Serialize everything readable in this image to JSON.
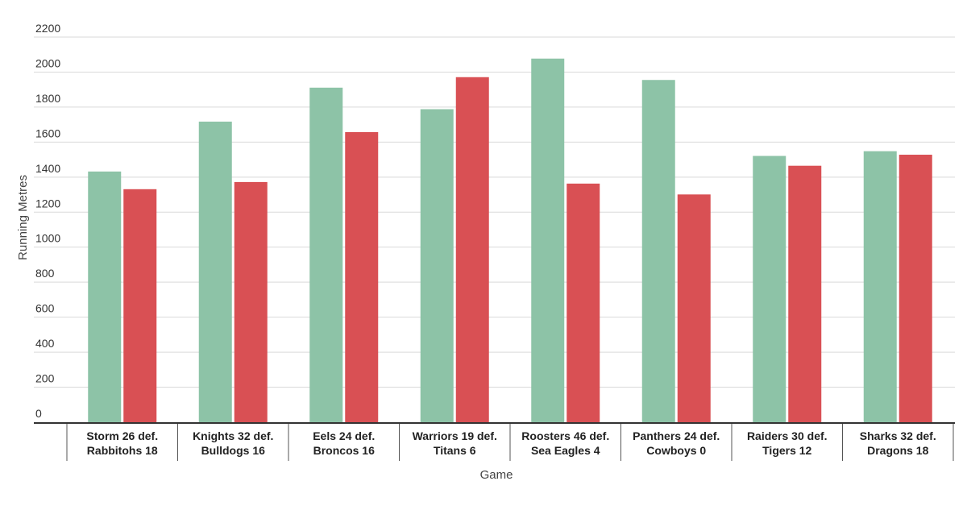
{
  "chart_data": {
    "type": "bar",
    "xlabel": "Game",
    "ylabel": "Running Metres",
    "ylim": [
      0,
      2200
    ],
    "yticks": [
      0,
      200,
      400,
      600,
      800,
      1000,
      1200,
      1400,
      1600,
      1800,
      2000,
      2200
    ],
    "grid": true,
    "legend": "none",
    "categories": [
      [
        "Storm 26 def.",
        "Rabbitohs 18"
      ],
      [
        "Knights 32 def.",
        "Bulldogs 16"
      ],
      [
        "Eels 24 def.",
        "Broncos 16"
      ],
      [
        "Warriors 19 def.",
        "Titans 6"
      ],
      [
        "Roosters 46 def.",
        "Sea Eagles 4"
      ],
      [
        "Panthers 24 def.",
        "Cowboys 0"
      ],
      [
        "Raiders 30 def.",
        "Tigers 12"
      ],
      [
        "Sharks 32 def.",
        "Dragons 18"
      ]
    ],
    "series": [
      {
        "color": "#8dc3a7",
        "values": [
          1432,
          1717,
          1911,
          1788,
          2077,
          1955,
          1521,
          1548
        ]
      },
      {
        "color": "#d95054",
        "values": [
          1331,
          1372,
          1657,
          1971,
          1363,
          1301,
          1465,
          1528
        ]
      }
    ]
  }
}
